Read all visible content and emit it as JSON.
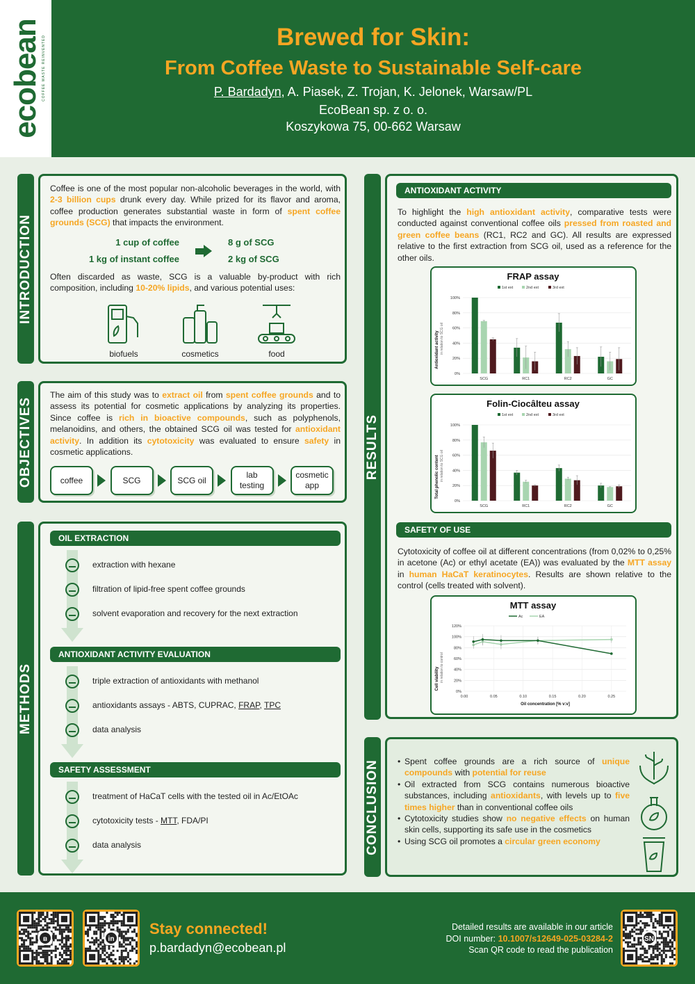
{
  "header": {
    "logo_text": "ecobean",
    "logo_tagline": "COFFEE WASTE REINVENTED",
    "title": "Brewed for Skin:",
    "subtitle": "From Coffee Waste to Sustainable Self-care",
    "presenting_author": "P. Bardadyn",
    "other_authors": ", A. Piasek, Z. Trojan, K. Jelonek, Warsaw/PL",
    "company": "EcoBean sp. z o. o.",
    "address": "Koszykowa 75, 00-662 Warsaw"
  },
  "colors": {
    "primary": "#1f6a33",
    "accent": "#f6a623",
    "light_green": "#a8d5b0",
    "maroon": "#4f1a1e",
    "panel": "#f3f6f0"
  },
  "introduction": {
    "label": "INTRODUCTION",
    "p1": [
      {
        "t": "Coffee is one of the most popular non-alcoholic beverages in the world, with "
      },
      {
        "t": "2-3 billion cups",
        "hl": true
      },
      {
        "t": " drunk every day. While prized for its flavor and aroma, coffee production generates substantial waste in form of "
      },
      {
        "t": "spent coffee grounds (SCG)",
        "hl": true
      },
      {
        "t": " that impacts the environment."
      }
    ],
    "conversions": [
      {
        "from": "1 cup of coffee",
        "to": "8 g of SCG"
      },
      {
        "from": "1 kg of instant coffee",
        "to": "2 kg of SCG"
      }
    ],
    "p2": [
      {
        "t": "Often discarded as waste, SCG is a valuable by-product with rich composition, including "
      },
      {
        "t": "10-20% lipids",
        "hl": true
      },
      {
        "t": ", and various potential uses:"
      }
    ],
    "uses": [
      {
        "label": "biofuels",
        "icon": "fuel-pump-icon"
      },
      {
        "label": "cosmetics",
        "icon": "cosmetics-bottles-icon"
      },
      {
        "label": "food",
        "icon": "food-production-icon"
      }
    ]
  },
  "objectives": {
    "label": "OBJECTIVES",
    "p": [
      {
        "t": "The aim of this study was to "
      },
      {
        "t": "extract oil",
        "hl": true
      },
      {
        "t": " from "
      },
      {
        "t": "spent coffee grounds",
        "hl": true
      },
      {
        "t": " and to assess its potential for cosmetic applications by analyzing its properties. Since coffee is "
      },
      {
        "t": "rich in bioactive compounds",
        "hl": true
      },
      {
        "t": ", such as polyphenols, melanoidins, and others, the obtained SCG oil was tested for "
      },
      {
        "t": "antioxidant activity",
        "hl": true
      },
      {
        "t": ". In addition its "
      },
      {
        "t": "cytotoxicity",
        "hl": true
      },
      {
        "t": " was evaluated to ensure "
      },
      {
        "t": "safety",
        "hl": true
      },
      {
        "t": " in cosmetic applications."
      }
    ],
    "flow": [
      "coffee",
      "SCG",
      "SCG oil",
      "lab testing",
      "cosmetic app"
    ]
  },
  "methods": {
    "label": "METHODS",
    "sections": [
      {
        "title": "OIL EXTRACTION",
        "steps": [
          {
            "text": "extraction with hexane",
            "icon": "extraction-flask-icon"
          },
          {
            "text": "filtration of lipid-free spent coffee grounds",
            "icon": "funnel-icon"
          },
          {
            "text": "solvent evaporation and recovery for the next extraction",
            "icon": "evaporation-icon"
          }
        ]
      },
      {
        "title": "ANTIOXIDANT ACTIVITY EVALUATION",
        "steps": [
          {
            "text": "triple extraction of antioxidants with methanol",
            "icon": "test-tubes-icon"
          },
          {
            "text": "antioxidants assays - ABTS, CUPRAC, ",
            "links": [
              "FRAP",
              "TPC"
            ],
            "icon": "pipette-icon"
          },
          {
            "text": "data analysis",
            "icon": "chart-analysis-icon"
          }
        ]
      },
      {
        "title": "SAFETY ASSESSMENT",
        "steps": [
          {
            "text": "treatment of HaCaT cells with the tested oil in Ac/EtOAc",
            "icon": "cells-icon"
          },
          {
            "text": "cytotoxicity tests - ",
            "link": "MTT",
            "after": ", FDA/PI",
            "icon": "well-plate-icon"
          },
          {
            "text": "data analysis",
            "icon": "chart-analysis-icon"
          }
        ]
      }
    ]
  },
  "results": {
    "label": "RESULTS",
    "antioxidant": {
      "title": "ANTIOXIDANT ACTIVITY",
      "p": [
        {
          "t": "To highlight the "
        },
        {
          "t": "high antioxidant activity",
          "hl": true
        },
        {
          "t": ", comparative tests were conducted against conventional coffee oils "
        },
        {
          "t": "pressed from roasted and green coffee beans",
          "hl": true
        },
        {
          "t": " (RC1, RC2 and GC). All results are expressed relative to the first extraction from SCG oil, used as a reference for the other oils."
        }
      ]
    },
    "safety": {
      "title": "SAFETY OF USE",
      "p": [
        {
          "t": "Cytotoxicity of coffee oil at different concentrations (from 0,02% to 0,25% in acetone (Ac) or ethyl acetate (EA)) was evaluated by the "
        },
        {
          "t": "MTT assay",
          "hl": true
        },
        {
          "t": " in "
        },
        {
          "t": "human HaCaT keratinocytes",
          "hl": true
        },
        {
          "t": ". Results are shown relative to the control (cells treated with solvent)."
        }
      ]
    }
  },
  "chart_data": [
    {
      "type": "bar",
      "title": "FRAP assay",
      "ylabel": "Antioxidant activity",
      "ylabel_sub": "in relation to SCG oil",
      "categories": [
        "SCG",
        "RC1",
        "RC2",
        "GC"
      ],
      "ylim": [
        0,
        100
      ],
      "yticks": [
        "0%",
        "20%",
        "40%",
        "60%",
        "80%",
        "100%"
      ],
      "legend": "top",
      "grid": true,
      "series": [
        {
          "name": "1st ext",
          "color": "#1f6a33",
          "values": [
            100,
            34,
            67,
            22
          ],
          "errors": [
            0,
            12,
            12,
            13
          ]
        },
        {
          "name": "2nd ext",
          "color": "#a8d5b0",
          "values": [
            69,
            21,
            32,
            16
          ],
          "errors": [
            1,
            15,
            10,
            12
          ]
        },
        {
          "name": "3rd ext",
          "color": "#4f1a1e",
          "values": [
            45,
            16,
            23,
            19
          ],
          "errors": [
            2,
            12,
            11,
            15
          ]
        }
      ]
    },
    {
      "type": "bar",
      "title": "Folin-Ciocâlteu assay",
      "ylabel": "Total phenolic content",
      "ylabel_sub": "in relation to SCG oil",
      "categories": [
        "SCG",
        "RC1",
        "RC2",
        "GC"
      ],
      "ylim": [
        0,
        100
      ],
      "yticks": [
        "0%",
        "20%",
        "40%",
        "60%",
        "80%",
        "100%"
      ],
      "legend": "top",
      "grid": true,
      "series": [
        {
          "name": "1st ext",
          "color": "#1f6a33",
          "values": [
            100,
            37,
            43,
            20
          ],
          "errors": [
            0,
            3,
            4,
            3
          ]
        },
        {
          "name": "2nd ext",
          "color": "#a8d5b0",
          "values": [
            77,
            25,
            29,
            18
          ],
          "errors": [
            7,
            2,
            2,
            0.5
          ]
        },
        {
          "name": "3rd ext",
          "color": "#4f1a1e",
          "values": [
            66,
            20,
            27,
            19
          ],
          "errors": [
            10,
            1,
            6,
            2
          ]
        }
      ]
    },
    {
      "type": "line",
      "title": "MTT assay",
      "ylabel": "Cell viability",
      "ylabel_sub": "in relation to control",
      "xlabel": "Oil concentration [% v:v]",
      "xlim": [
        0,
        0.275
      ],
      "ylim": [
        0,
        120
      ],
      "xticks": [
        "0.00",
        "0.05",
        "0.10",
        "0.15",
        "0.20",
        "0.25"
      ],
      "yticks": [
        "0%",
        "20%",
        "40%",
        "60%",
        "80%",
        "100%",
        "120%"
      ],
      "legend": "top",
      "grid": true,
      "x": [
        0.0156,
        0.03125,
        0.0625,
        0.125,
        0.25
      ],
      "series": [
        {
          "name": "Ac",
          "color": "#1f6a33",
          "values": [
            91,
            95,
            93,
            93,
            69
          ],
          "errors": [
            10,
            10,
            10,
            7,
            1
          ]
        },
        {
          "name": "EA",
          "color": "#a8d5b0",
          "values": [
            85,
            91,
            86,
            93,
            95
          ],
          "errors": [
            7,
            7,
            9,
            7,
            6
          ]
        }
      ]
    }
  ],
  "conclusion": {
    "label": "CONCLUSION",
    "bullets": [
      [
        {
          "t": "Spent coffee grounds are a rich source of "
        },
        {
          "t": "unique compounds",
          "hl": true
        },
        {
          "t": " with "
        },
        {
          "t": "potential for reuse",
          "hl": true
        }
      ],
      [
        {
          "t": "Oil extracted from SCG contains numerous bioactive substances, including "
        },
        {
          "t": "antioxidants",
          "hl": true
        },
        {
          "t": ", with levels up to "
        },
        {
          "t": "five times higher",
          "hl": true
        },
        {
          "t": " than in conventional coffee oils"
        }
      ],
      [
        {
          "t": "Cytotoxicity studies show "
        },
        {
          "t": "no negative effects",
          "hl": true
        },
        {
          "t": " on human skin cells, supporting its safe use in the cosmetics"
        }
      ],
      [
        {
          "t": "Using SCG oil promotes a "
        },
        {
          "t": "circular green economy",
          "hl": true
        }
      ]
    ]
  },
  "footer": {
    "stay_connected": "Stay connected!",
    "email": "p.bardadyn@ecobean.pl",
    "article_line1": "Detailed results are available in our article",
    "doi_label": "DOI number: ",
    "doi": "10.1007/s12649-025-03284-2",
    "article_line3": "Scan QR code to read the publication",
    "qr_badges": [
      "ʙ",
      "in",
      "SN"
    ]
  }
}
